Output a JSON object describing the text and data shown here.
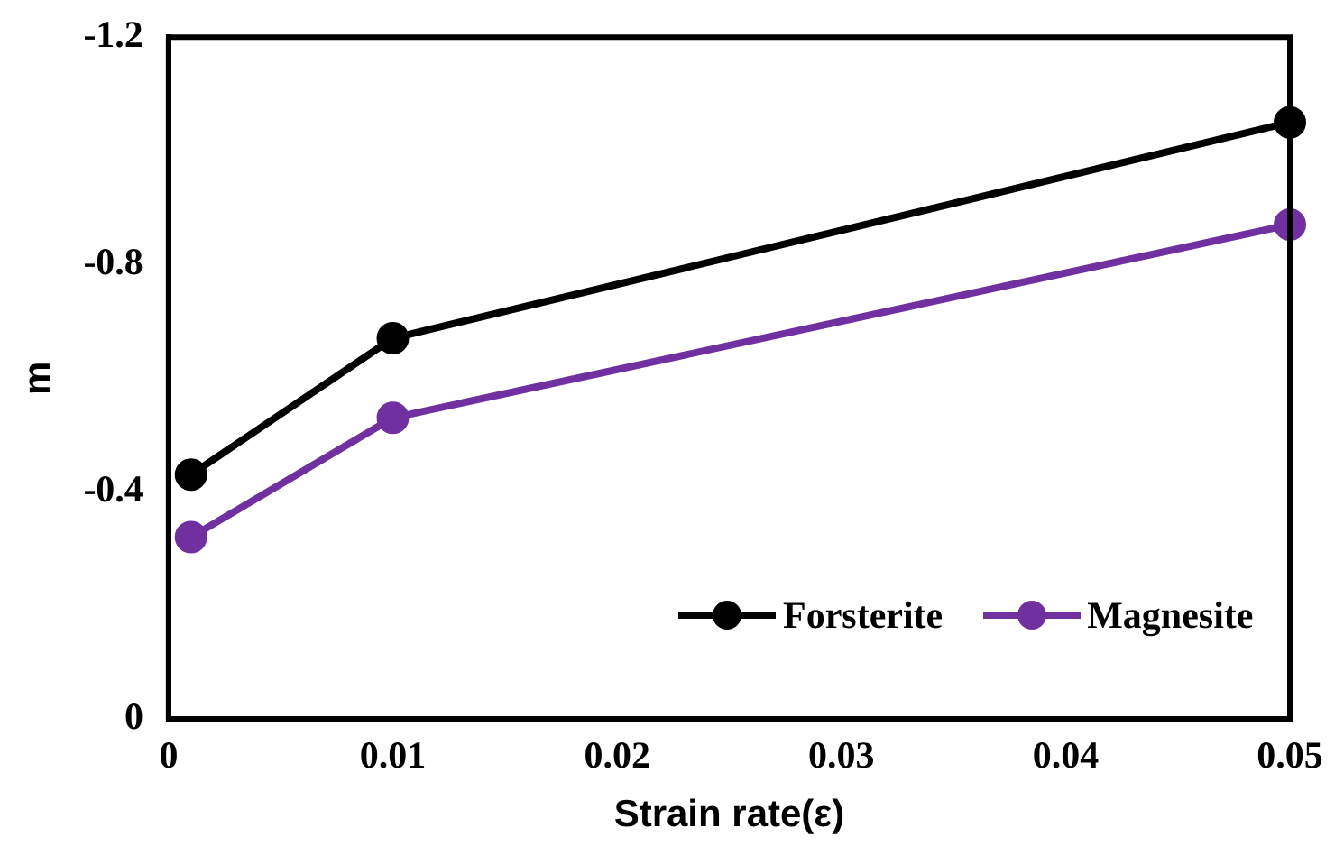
{
  "chart_data": {
    "type": "line",
    "xlabel": "Strain rate(ε)",
    "ylabel": "m",
    "x": [
      0.001,
      0.01,
      0.05
    ],
    "series": [
      {
        "name": "Forsterite",
        "color": "#000000",
        "values": [
          -0.43,
          -0.67,
          -1.05
        ]
      },
      {
        "name": "Magnesite",
        "color": "#7030a0",
        "values": [
          -0.32,
          -0.53,
          -0.87
        ]
      }
    ],
    "xlim": [
      0,
      0.05
    ],
    "xticks": [
      0,
      0.01,
      0.02,
      0.03,
      0.04,
      0.05
    ],
    "ylim": [
      0,
      -1.2
    ],
    "yticks": [
      0,
      -0.4,
      -0.8,
      -1.2
    ],
    "grid": false,
    "legend": "bottom right",
    "marker": "circle",
    "line_style": "solid"
  }
}
